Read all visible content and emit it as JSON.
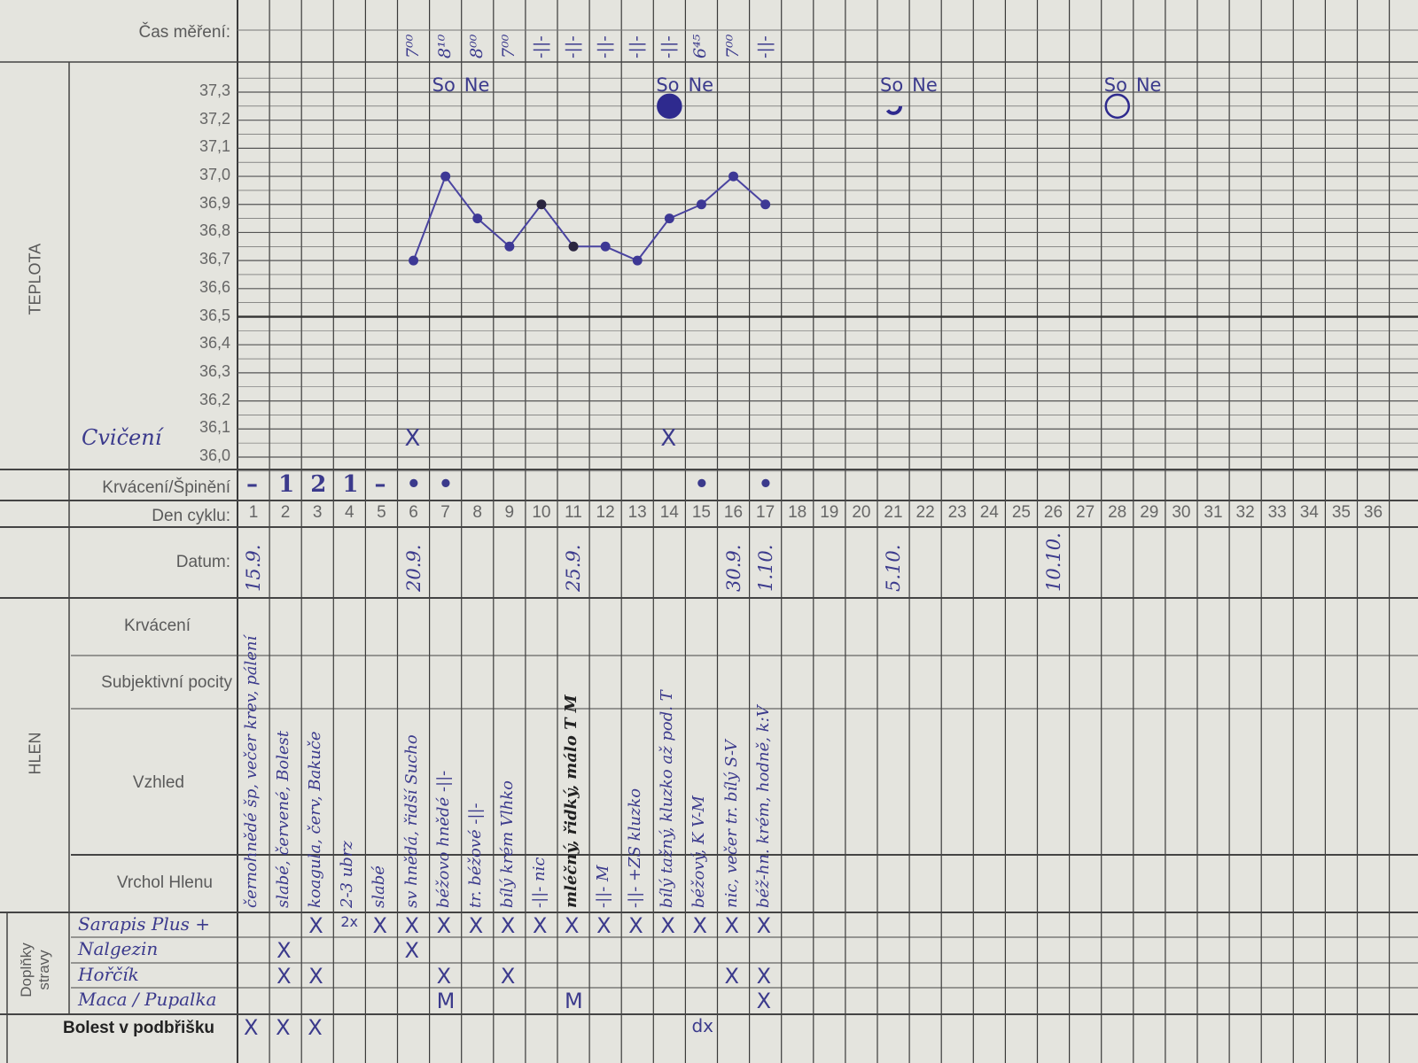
{
  "labels": {
    "time": "Čas měření:",
    "temperature": "TEPLOTA",
    "bleeding_spotting": "Krvácení/Špinění",
    "cycle_day": "Den cyklu:",
    "date": "Datum:",
    "mucus": "HLEN",
    "mucus_bleeding": "Krvácení",
    "feelings": "Subjektivní pocity",
    "appearance": "Vzhled",
    "peak": "Vrchol Hlenu",
    "supplements": "Doplňky stravy",
    "pain": "Bolest v podbřišku",
    "exercise": "Cvičení"
  },
  "supplement_names": [
    "Sarapis Plus +",
    "Nalgezin",
    "Hořčík",
    "Maca / Pupalka"
  ],
  "chart_data": {
    "type": "line",
    "ylabel": "TEPLOTA",
    "xlabel": "Den cyklu",
    "ylim": [
      36.0,
      37.3
    ],
    "yticks": [
      "37,3",
      "37,2",
      "37,1",
      "37,0",
      "36,9",
      "36,8",
      "36,7",
      "36,6",
      "36,5",
      "36,4",
      "36,3",
      "36,2",
      "36,1",
      "36,0"
    ],
    "x_days": 36,
    "grid": true,
    "line_color": "#4a44a0",
    "series": [
      {
        "x": [
          6,
          7,
          8,
          9,
          10,
          11,
          12,
          13,
          14,
          15,
          16,
          17
        ],
        "values": [
          36.7,
          37.0,
          36.85,
          36.75,
          36.9,
          36.75,
          36.75,
          36.7,
          36.85,
          36.9,
          37.0,
          36.9
        ]
      }
    ]
  },
  "times": {
    "6": "7⁰⁰",
    "7": "8¹⁰",
    "8": "8⁰⁰",
    "9": "7⁰⁰",
    "10": "-||-",
    "11": "-||-",
    "12": "-||-",
    "13": "-||-",
    "14": "-||-",
    "15": "6⁴⁵",
    "16": "7⁰⁰",
    "17": "-||-"
  },
  "weekdays": {
    "7": "So",
    "8": "Ne",
    "14": "So",
    "15": "Ne",
    "21": "So",
    "22": "Ne",
    "28": "So",
    "29": "Ne"
  },
  "moon_marks": [
    {
      "day": 14,
      "symbol": "full-moon"
    },
    {
      "day": 21,
      "symbol": "crescent"
    },
    {
      "day": 28,
      "symbol": "new-moon"
    }
  ],
  "exercise_days": [
    6,
    14
  ],
  "exercise_mark": "X",
  "bleeding": {
    "1": "–",
    "2": "1",
    "3": "2",
    "4": "1",
    "5": "–",
    "6": "•",
    "7": "•",
    "15": "•",
    "17": "•"
  },
  "dates": {
    "1": "15.9.",
    "6": "20.9.",
    "11": "25.9.",
    "16": "30.9.",
    "17": "1.10.",
    "21": "5.10.",
    "26": "10.10."
  },
  "notes": {
    "1": "černohnědé šp, večer krev, pálení",
    "2": "slabé, červené, Bolest",
    "3": "koagula, červ, Bakuče",
    "4": "2-3 ubrz",
    "5": "slabé",
    "6": "sv hnědá, řidší    Sucho",
    "7": "béžovo hnědé    -||-",
    "8": "tr. béžové    -||-",
    "9": "bílý krém    Vlhko",
    "10": "-||-    nic",
    "11": "mléčný, řidký, málo T  M",
    "12": "-||-    M",
    "13": "-||- +ZS    kluzko",
    "14": "bílý tažný, kluzko až pod. T",
    "15": "béžový, K    V-M",
    "16": "nic, večer tr. bílý  S-V",
    "17": "béž-hn. krém, hodně, k:V"
  },
  "supplements": [
    {
      "3": "X",
      "4": "2x",
      "5": "X",
      "6": "X",
      "7": "X",
      "8": "X",
      "9": "X",
      "10": "X",
      "11": "X",
      "12": "X",
      "13": "X",
      "14": "X",
      "15": "X",
      "16": "X",
      "17": "X"
    },
    {
      "2": "X",
      "6": "X"
    },
    {
      "2": "X",
      "3": "X",
      "7": "X",
      "9": "X",
      "16": "X",
      "17": "X"
    },
    {
      "7": "M",
      "11": "M",
      "17": "X"
    }
  ],
  "pain": {
    "1": "X",
    "2": "X",
    "3": "X",
    "15": "dx"
  }
}
